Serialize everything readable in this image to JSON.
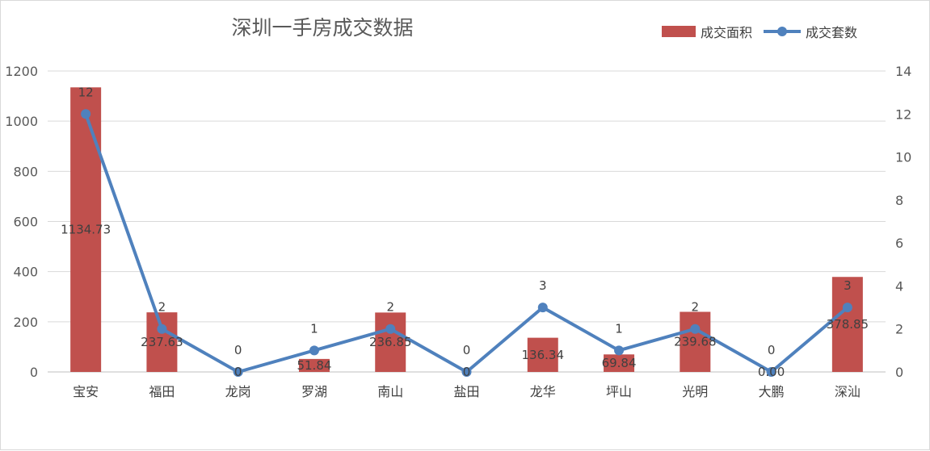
{
  "chart_data": {
    "type": "bar",
    "title": "深圳一手房成交数据",
    "categories": [
      "宝安",
      "福田",
      "龙岗",
      "罗湖",
      "南山",
      "盐田",
      "龙华",
      "坪山",
      "光明",
      "大鹏",
      "深汕"
    ],
    "series": [
      {
        "name": "成交面积",
        "type": "bar",
        "axis": "left",
        "color": "#C0504D",
        "values": [
          1134.73,
          237.63,
          0,
          51.84,
          236.85,
          0,
          136.34,
          69.84,
          239.68,
          0.0,
          378.85
        ],
        "labels": [
          "1134.73",
          "237.63",
          "0",
          "51.84",
          "236.85",
          "0",
          "136.34",
          "69.84",
          "239.68",
          "0.00",
          "378.85"
        ]
      },
      {
        "name": "成交套数",
        "type": "line",
        "axis": "right",
        "color": "#4F81BD",
        "values": [
          12,
          2,
          0,
          1,
          2,
          0,
          3,
          1,
          2,
          0,
          3
        ],
        "labels": [
          "12",
          "2",
          "0",
          "1",
          "2",
          "0",
          "3",
          "1",
          "2",
          "0",
          "3"
        ]
      }
    ],
    "y_left": {
      "min": 0,
      "max": 1200,
      "ticks": [
        "0",
        "200",
        "400",
        "600",
        "800",
        "1000",
        "1200"
      ]
    },
    "y_right": {
      "min": 0,
      "max": 14,
      "ticks": [
        "0",
        "2",
        "4",
        "6",
        "8",
        "10",
        "12",
        "14"
      ]
    },
    "xlabel": "",
    "ylabel": "",
    "grid": true,
    "legend": "top-right"
  }
}
